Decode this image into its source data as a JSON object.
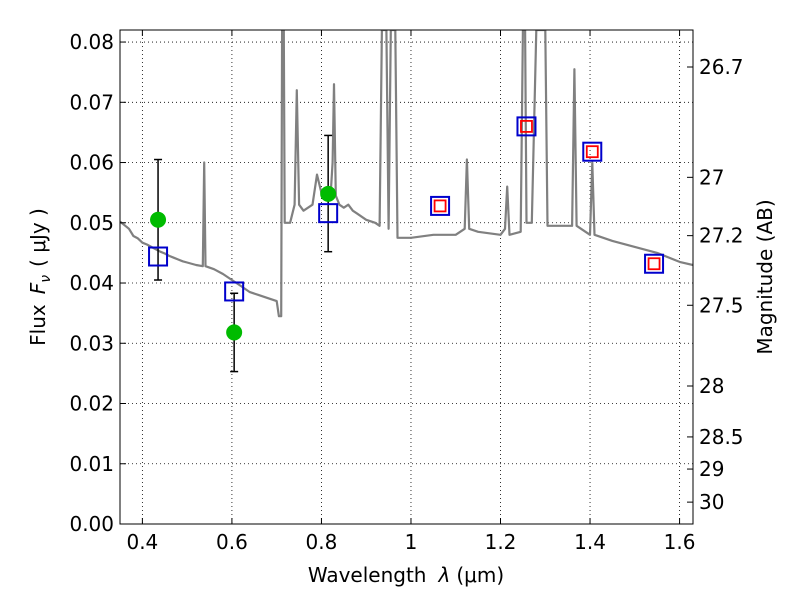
{
  "chart_data": {
    "type": "scatter",
    "xlabel": "Wavelength",
    "xlabel_symbol": "λ",
    "xlabel_unit": "(μm)",
    "ylabel": "Flux",
    "ylabel_symbol": "F",
    "ylabel_symbol_sub": "ν",
    "ylabel_unit": "( μJy )",
    "y2label": "Magnitude (AB)",
    "xlim": [
      0.35,
      1.63
    ],
    "ylim": [
      0.0,
      0.082
    ],
    "grid": true,
    "x_ticks": [
      0.4,
      0.6,
      0.8,
      1.0,
      1.2,
      1.4,
      1.6
    ],
    "x_tick_labels": [
      "0.4",
      "0.6",
      "0.8",
      "1",
      "1.2",
      "1.4",
      "1.6"
    ],
    "y_ticks": [
      0.0,
      0.01,
      0.02,
      0.03,
      0.04,
      0.05,
      0.06,
      0.07,
      0.08
    ],
    "y_tick_labels": [
      "0.00",
      "0.01",
      "0.02",
      "0.03",
      "0.04",
      "0.05",
      "0.06",
      "0.07",
      "0.08"
    ],
    "y2_ticks": [
      {
        "label": "26.7",
        "mag": 26.7
      },
      {
        "label": "27",
        "mag": 27.0
      },
      {
        "label": "27.2",
        "mag": 27.2
      },
      {
        "label": "27.5",
        "mag": 27.5
      },
      {
        "label": "28",
        "mag": 28.0
      },
      {
        "label": "28.5",
        "mag": 28.5
      },
      {
        "label": "29",
        "mag": 29.0
      },
      {
        "label": "30",
        "mag": 30.0
      }
    ],
    "colors": {
      "spectrum": "#808080",
      "observed": "#00bb00",
      "model_box": "#0000cc",
      "model_inner": "#ff0000",
      "errorbar": "#000000"
    },
    "series": [
      {
        "type": "line",
        "color": "#808080",
        "points": [
          [
            0.35,
            0.0502
          ],
          [
            0.36,
            0.0496
          ],
          [
            0.37,
            0.049
          ],
          [
            0.38,
            0.0478
          ],
          [
            0.39,
            0.0474
          ],
          [
            0.4,
            0.0467
          ],
          [
            0.41,
            0.0464
          ],
          [
            0.42,
            0.046
          ],
          [
            0.43,
            0.0456
          ],
          [
            0.44,
            0.0452
          ],
          [
            0.45,
            0.0449
          ],
          [
            0.46,
            0.0445
          ],
          [
            0.47,
            0.0442
          ],
          [
            0.48,
            0.0439
          ],
          [
            0.49,
            0.0436
          ],
          [
            0.5,
            0.0434
          ],
          [
            0.52,
            0.043
          ],
          [
            0.535,
            0.0428
          ],
          [
            0.538,
            0.06
          ],
          [
            0.541,
            0.0428
          ],
          [
            0.56,
            0.0423
          ],
          [
            0.58,
            0.0415
          ],
          [
            0.6,
            0.0405
          ],
          [
            0.62,
            0.0395
          ],
          [
            0.64,
            0.0385
          ],
          [
            0.66,
            0.038
          ],
          [
            0.68,
            0.0375
          ],
          [
            0.7,
            0.037
          ],
          [
            0.705,
            0.0345
          ],
          [
            0.71,
            0.0345
          ],
          [
            0.712,
            0.082
          ],
          [
            0.716,
            0.082
          ],
          [
            0.718,
            0.05
          ],
          [
            0.73,
            0.05
          ],
          [
            0.74,
            0.053
          ],
          [
            0.745,
            0.072
          ],
          [
            0.75,
            0.053
          ],
          [
            0.76,
            0.052
          ],
          [
            0.78,
            0.053
          ],
          [
            0.79,
            0.058
          ],
          [
            0.8,
            0.055
          ],
          [
            0.81,
            0.0545
          ],
          [
            0.82,
            0.054
          ],
          [
            0.825,
            0.06
          ],
          [
            0.828,
            0.073
          ],
          [
            0.832,
            0.0545
          ],
          [
            0.84,
            0.053
          ],
          [
            0.85,
            0.0525
          ],
          [
            0.86,
            0.053
          ],
          [
            0.87,
            0.052
          ],
          [
            0.88,
            0.0515
          ],
          [
            0.9,
            0.0505
          ],
          [
            0.92,
            0.05
          ],
          [
            0.93,
            0.0495
          ],
          [
            0.935,
            0.082
          ],
          [
            0.945,
            0.082
          ],
          [
            0.95,
            0.049
          ],
          [
            0.955,
            0.082
          ],
          [
            0.965,
            0.082
          ],
          [
            0.97,
            0.0475
          ],
          [
            1.0,
            0.0475
          ],
          [
            1.05,
            0.048
          ],
          [
            1.1,
            0.048
          ],
          [
            1.12,
            0.049
          ],
          [
            1.125,
            0.0605
          ],
          [
            1.13,
            0.049
          ],
          [
            1.15,
            0.0485
          ],
          [
            1.2,
            0.048
          ],
          [
            1.21,
            0.049
          ],
          [
            1.215,
            0.056
          ],
          [
            1.22,
            0.048
          ],
          [
            1.245,
            0.0485
          ],
          [
            1.25,
            0.082
          ],
          [
            1.255,
            0.082
          ],
          [
            1.258,
            0.05
          ],
          [
            1.27,
            0.05
          ],
          [
            1.28,
            0.082
          ],
          [
            1.3,
            0.082
          ],
          [
            1.305,
            0.0495
          ],
          [
            1.33,
            0.0495
          ],
          [
            1.36,
            0.0495
          ],
          [
            1.365,
            0.0755
          ],
          [
            1.37,
            0.0495
          ],
          [
            1.4,
            0.048
          ],
          [
            1.405,
            0.06
          ],
          [
            1.41,
            0.048
          ],
          [
            1.45,
            0.047
          ],
          [
            1.5,
            0.046
          ],
          [
            1.55,
            0.045
          ],
          [
            1.6,
            0.0435
          ],
          [
            1.63,
            0.043
          ]
        ]
      },
      {
        "type": "scatter",
        "marker": "circle",
        "color": "#00bb00",
        "points": [
          {
            "x": 0.435,
            "y": 0.0505
          },
          {
            "x": 0.605,
            "y": 0.0318
          },
          {
            "x": 0.815,
            "y": 0.0548
          }
        ]
      },
      {
        "type": "errorbar",
        "color": "#000000",
        "points": [
          {
            "x": 0.435,
            "y": 0.0505,
            "ylow": 0.0405,
            "yhigh": 0.0605
          },
          {
            "x": 0.605,
            "y": 0.0318,
            "ylow": 0.0253,
            "yhigh": 0.0383
          },
          {
            "x": 0.815,
            "y": 0.0548,
            "ylow": 0.0452,
            "yhigh": 0.0645
          }
        ]
      },
      {
        "type": "scatter",
        "marker": "square",
        "color": "#0000cc",
        "points": [
          {
            "x": 0.435,
            "y": 0.0444
          },
          {
            "x": 0.605,
            "y": 0.0386
          },
          {
            "x": 0.815,
            "y": 0.0516
          },
          {
            "x": 1.065,
            "y": 0.0528
          },
          {
            "x": 1.258,
            "y": 0.066
          },
          {
            "x": 1.405,
            "y": 0.0618
          },
          {
            "x": 1.543,
            "y": 0.0432
          }
        ]
      },
      {
        "type": "scatter",
        "marker": "square-small",
        "color": "#ff0000",
        "points": [
          {
            "x": 1.065,
            "y": 0.0528
          },
          {
            "x": 1.258,
            "y": 0.066
          },
          {
            "x": 1.405,
            "y": 0.0618
          },
          {
            "x": 1.543,
            "y": 0.0432
          }
        ]
      }
    ]
  }
}
